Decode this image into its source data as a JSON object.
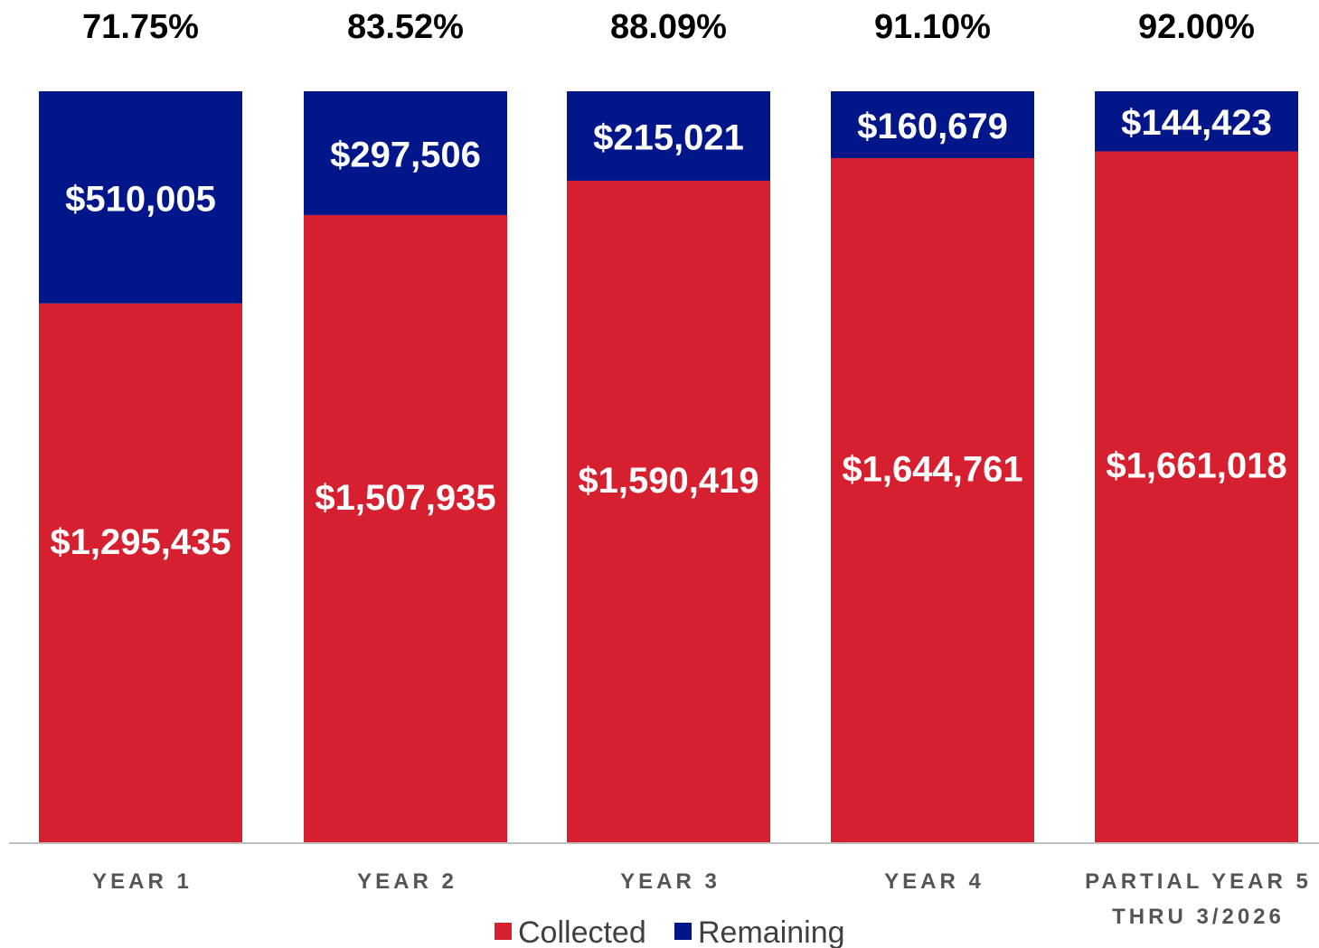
{
  "chart_data": {
    "type": "bar",
    "stacked": true,
    "categories": [
      [
        "YEAR 1"
      ],
      [
        "YEAR 2"
      ],
      [
        "YEAR 3"
      ],
      [
        "YEAR 4"
      ],
      [
        "PARTIAL YEAR 5",
        "THRU 3/2026"
      ]
    ],
    "percent_labels": [
      "71.75%",
      "83.52%",
      "88.09%",
      "91.10%",
      "92.00%"
    ],
    "series": [
      {
        "name": "Collected",
        "color": "#d62030",
        "values": [
          1295435,
          1507935,
          1590419,
          1644761,
          1661018
        ],
        "labels": [
          "$1,295,435",
          "$1,507,935",
          "$1,590,419",
          "$1,644,761",
          "$1,661,018"
        ]
      },
      {
        "name": "Remaining",
        "color": "#001689",
        "values": [
          510005,
          297506,
          215021,
          160679,
          144423
        ],
        "labels": [
          "$510,005",
          "$297,506",
          "$215,021",
          "$160,679",
          "$144,423"
        ]
      }
    ],
    "legend_position": "bottom",
    "grid": false,
    "axis_line_color": "#bfbfbf"
  }
}
